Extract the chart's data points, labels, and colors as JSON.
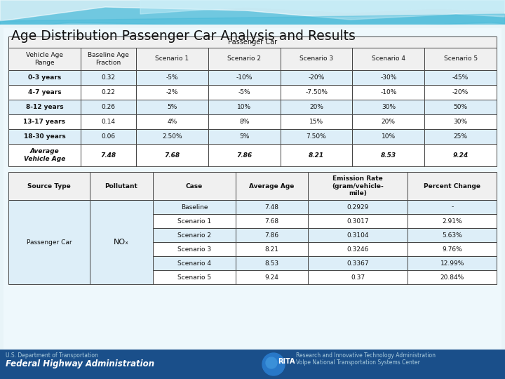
{
  "title": "Age Distribution Passenger Car Analysis and Results",
  "table1_header_top": "Passenger Car",
  "table1_col_headers": [
    "Vehicle Age\nRange",
    "Baseline Age\nFraction",
    "Scenario 1",
    "Scenario 2",
    "Scenario 3",
    "Scenario 4",
    "Scenario 5"
  ],
  "table1_rows": [
    [
      "0-3 years",
      "0.32",
      "-5%",
      "-10%",
      "-20%",
      "-30%",
      "-45%"
    ],
    [
      "4-7 years",
      "0.22",
      "-2%",
      "-5%",
      "-7.50%",
      "-10%",
      "-20%"
    ],
    [
      "8-12 years",
      "0.26",
      "5%",
      "10%",
      "20%",
      "30%",
      "50%"
    ],
    [
      "13-17 years",
      "0.14",
      "4%",
      "8%",
      "15%",
      "20%",
      "30%"
    ],
    [
      "18-30 years",
      "0.06",
      "2.50%",
      "5%",
      "7.50%",
      "10%",
      "25%"
    ],
    [
      "Average\nVehicle Age",
      "7.48",
      "7.68",
      "7.86",
      "8.21",
      "8.53",
      "9.24"
    ]
  ],
  "table2_col_headers": [
    "Source Type",
    "Pollutant",
    "Case",
    "Average Age",
    "Emission Rate\n(gram/vehicle-\nmile)",
    "Percent Change"
  ],
  "table2_rows": [
    [
      "Passenger Car",
      "NOₓ",
      "Baseline",
      "7.48",
      "0.2929",
      "-"
    ],
    [
      "",
      "",
      "Scenario 1",
      "7.68",
      "0.3017",
      "2.91%"
    ],
    [
      "",
      "",
      "Scenario 2",
      "7.86",
      "0.3104",
      "5.63%"
    ],
    [
      "",
      "",
      "Scenario 3",
      "8.21",
      "0.3246",
      "9.76%"
    ],
    [
      "",
      "",
      "Scenario 4",
      "8.53",
      "0.3367",
      "12.99%"
    ],
    [
      "",
      "",
      "Scenario 5",
      "9.24",
      "0.37",
      "20.84%"
    ]
  ],
  "footer_left_line1": "U.S. Department of Transportation",
  "footer_left_line2": "Federal Highway Administration",
  "footer_right_line1": "Research and Innovative Technology Administration",
  "footer_right_line2": "Volpe National Transportation Systems Center",
  "bg_top": "#7dcfe8",
  "bg_wave1": "#a8dce8",
  "bg_wave2": "#d0ecf4",
  "bg_main": "#c8e8f0",
  "slide_white": "#f0f8fc",
  "table_border_color": "#444444",
  "header_bg": "#f0f0f0",
  "row_bg_blue": "#ddeef8",
  "row_bg_white": "#ffffff",
  "footer_bg": "#1a4f8a",
  "footer_text_light": "#aaccdd",
  "footer_text_white": "#ffffff"
}
